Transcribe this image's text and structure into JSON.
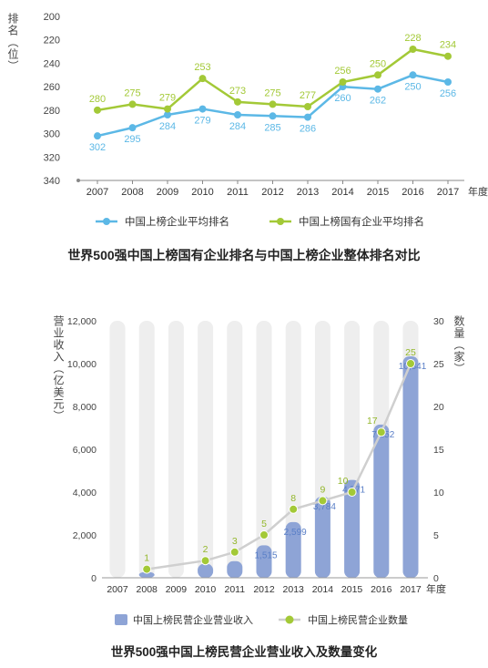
{
  "chart_data": [
    {
      "type": "line",
      "title": "世界500强中国上榜国有企业排名与中国上榜企业整体排名对比",
      "ylabel": "排名（位）",
      "xlabel": "年度",
      "y_inverted": true,
      "ylim": [
        200,
        340
      ],
      "y_ticks": [
        200,
        220,
        240,
        260,
        280,
        300,
        320,
        340
      ],
      "categories": [
        "2007",
        "2008",
        "2009",
        "2010",
        "2011",
        "2012",
        "2013",
        "2014",
        "2015",
        "2016",
        "2017"
      ],
      "grid": false,
      "legend_position": "bottom",
      "series": [
        {
          "name": "中国上榜企业平均排名",
          "color": "#5cb8e6",
          "values": [
            302,
            295,
            284,
            279,
            284,
            285,
            286,
            260,
            262,
            250,
            256
          ]
        },
        {
          "name": "中国上榜国有企业平均排名",
          "color": "#a3c937",
          "values": [
            280,
            275,
            279,
            253,
            273,
            275,
            277,
            256,
            250,
            228,
            234
          ]
        }
      ]
    },
    {
      "type": "bar",
      "title": "世界500强中国上榜民营企业营业收入及数量变化",
      "ylabel": "营业收入（亿美元）",
      "y2label": "数量（家）",
      "xlabel": "年度",
      "ylim": [
        0,
        12000
      ],
      "y_ticks": [
        0,
        2000,
        4000,
        6000,
        8000,
        10000,
        12000
      ],
      "y_tick_labels": [
        "0",
        "2,000",
        "4,000",
        "6,000",
        "8,000",
        "10,000",
        "12,000"
      ],
      "y2lim": [
        0,
        30
      ],
      "y2_ticks": [
        0,
        5,
        10,
        15,
        20,
        25,
        30
      ],
      "categories": [
        "2007",
        "2008",
        "2009",
        "2010",
        "2011",
        "2012",
        "2013",
        "2014",
        "2015",
        "2016",
        "2017"
      ],
      "legend_position": "bottom",
      "series": [
        {
          "name": "中国上榜民营企业营业收入",
          "kind": "bar",
          "axis": "left",
          "color": "#8ea4d6",
          "values": [
            0,
            272,
            0,
            652,
            779,
            1515,
            2599,
            3784,
            4571,
            7152,
            10341
          ],
          "labels": [
            "",
            "",
            "",
            "",
            "",
            "1,515",
            "2,599",
            "3,784",
            "4,571",
            "7,152",
            "10,341"
          ]
        },
        {
          "name": "中国上榜民营企业数量",
          "kind": "line",
          "axis": "right",
          "color": "#a3c937",
          "values": [
            0,
            1,
            0,
            2,
            3,
            5,
            8,
            9,
            10,
            17,
            25
          ],
          "labels": [
            "",
            "1",
            "",
            "2",
            "3",
            "5",
            "8",
            "9",
            "10",
            "17",
            "25"
          ]
        }
      ]
    }
  ]
}
